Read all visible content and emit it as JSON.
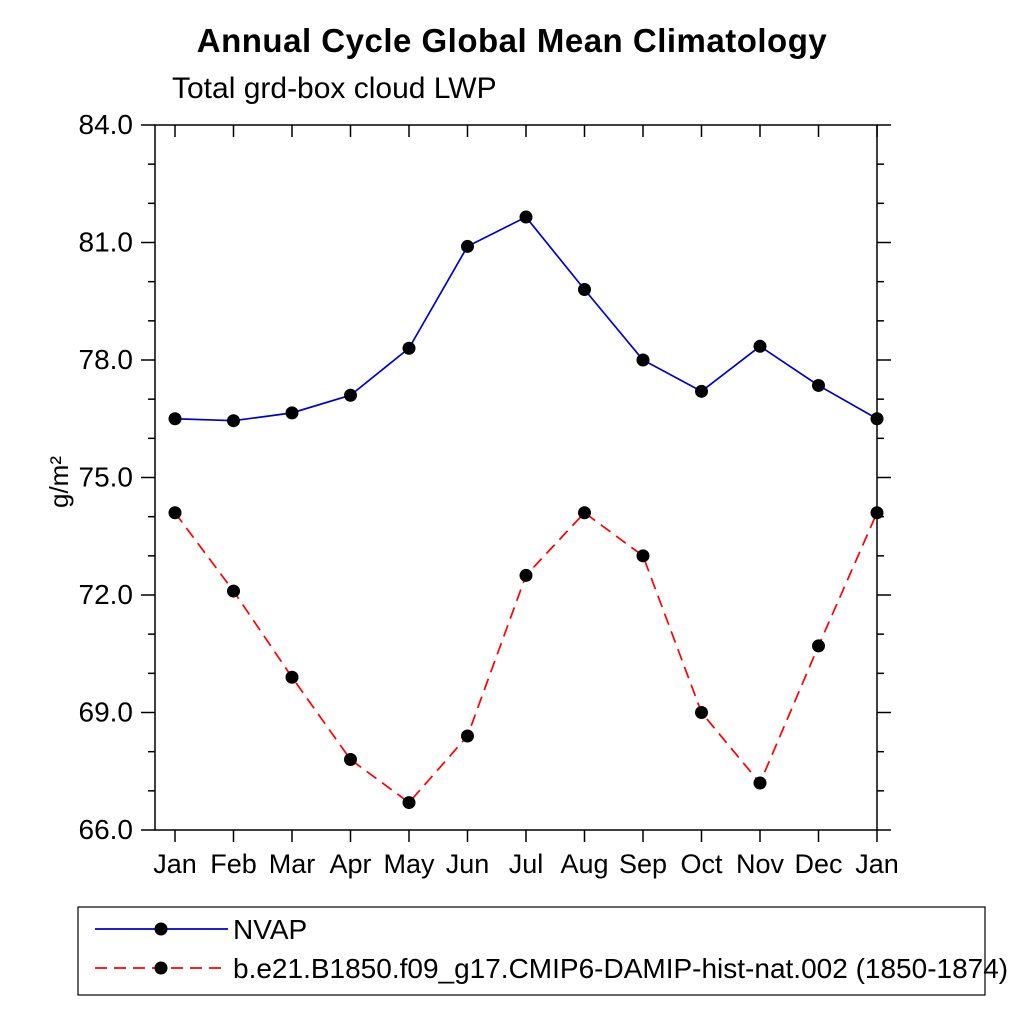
{
  "title": "Annual Cycle Global Mean Climatology",
  "subtitle": "Total grd-box cloud LWP",
  "ylabel": "g/m²",
  "chart_data": {
    "type": "line",
    "title": "Annual Cycle Global Mean Climatology",
    "subtitle": "Total grd-box cloud LWP",
    "xlabel": "",
    "ylabel": "g/m²",
    "categories": [
      "Jan",
      "Feb",
      "Mar",
      "Apr",
      "May",
      "Jun",
      "Jul",
      "Aug",
      "Sep",
      "Oct",
      "Nov",
      "Dec",
      "Jan"
    ],
    "ylim": [
      66.0,
      84.0
    ],
    "yticks": [
      66.0,
      69.0,
      72.0,
      75.0,
      78.0,
      81.0,
      84.0
    ],
    "ytick_labels": [
      "66.0",
      "69.0",
      "72.0",
      "75.0",
      "78.0",
      "81.0",
      "84.0"
    ],
    "minor_tick_interval": 1.0,
    "grid": false,
    "legend_position": "bottom",
    "marker": "filled-circle",
    "marker_color": "#000000",
    "series": [
      {
        "name": "NVAP",
        "color": "#0000cd",
        "style": "solid",
        "values": [
          76.5,
          76.45,
          76.65,
          77.1,
          78.3,
          80.9,
          81.65,
          79.8,
          78.0,
          77.2,
          78.35,
          77.35,
          76.5
        ]
      },
      {
        "name": "b.e21.B1850.f09_g17.CMIP6-DAMIP-hist-nat.002 (1850-1874)",
        "color": "#ff0000",
        "style": "dashed",
        "values": [
          74.1,
          72.1,
          69.9,
          67.8,
          66.7,
          68.4,
          72.5,
          74.1,
          73.0,
          69.0,
          67.2,
          70.7,
          74.1
        ]
      }
    ]
  }
}
